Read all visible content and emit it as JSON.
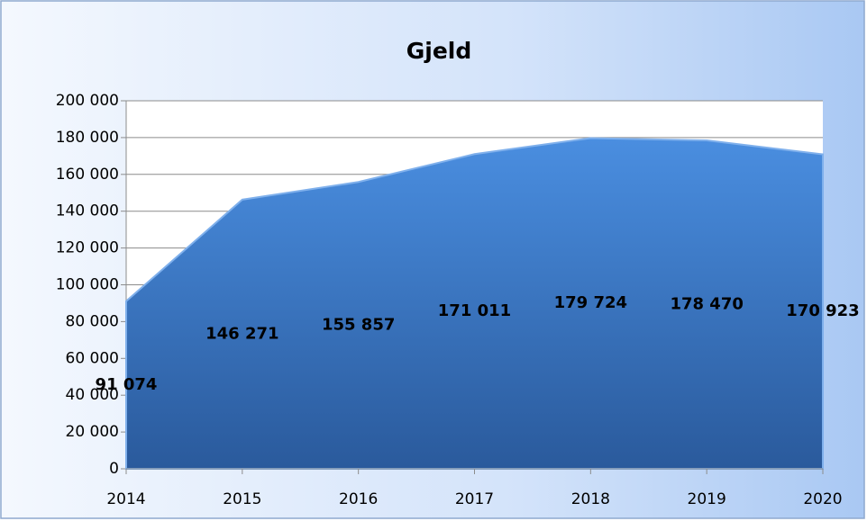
{
  "chart_data": {
    "type": "area",
    "title": "Gjeld",
    "categories": [
      "2014",
      "2015",
      "2016",
      "2017",
      "2018",
      "2019",
      "2020"
    ],
    "values": [
      91074,
      146271,
      155857,
      171011,
      179724,
      178470,
      170923
    ],
    "value_labels": [
      "91 074",
      "146 271",
      "155 857",
      "171 011",
      "179 724",
      "178 470",
      "170 923"
    ],
    "color": "#3d7fcf",
    "ylim": [
      0,
      200000
    ],
    "yticks": [
      0,
      {
        "value": 20000,
        "label": "20 000"
      },
      {
        "value": 40000,
        "label": "40 000"
      },
      {
        "value": 60000,
        "label": "60 000"
      },
      {
        "value": 80000,
        "label": "80 000"
      },
      {
        "value": 100000,
        "label": "100 000"
      },
      {
        "value": 120000,
        "label": "120 000"
      },
      {
        "value": 140000,
        "label": "140 000"
      },
      {
        "value": 160000,
        "label": "160 000"
      },
      {
        "value": 180000,
        "label": "180 000"
      },
      {
        "value": 200000,
        "label": "200 000"
      }
    ],
    "grid": true
  }
}
